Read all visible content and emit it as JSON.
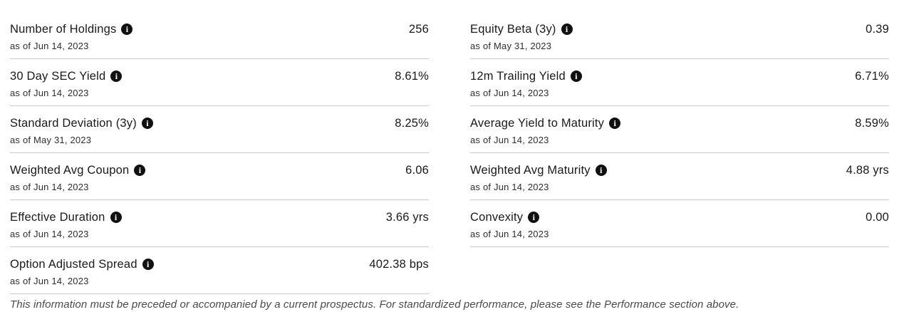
{
  "stats": {
    "left": [
      {
        "label": "Number of Holdings",
        "as_of": "as of Jun 14, 2023",
        "value": "256"
      },
      {
        "label": "30 Day SEC Yield",
        "as_of": "as of Jun 14, 2023",
        "value": "8.61%"
      },
      {
        "label": "Standard Deviation (3y)",
        "as_of": "as of May 31, 2023",
        "value": "8.25%"
      },
      {
        "label": "Weighted Avg Coupon",
        "as_of": "as of Jun 14, 2023",
        "value": "6.06"
      },
      {
        "label": "Effective Duration",
        "as_of": "as of Jun 14, 2023",
        "value": "3.66 yrs"
      },
      {
        "label": "Option Adjusted Spread",
        "as_of": "as of Jun 14, 2023",
        "value": "402.38 bps"
      }
    ],
    "right": [
      {
        "label": "Equity Beta (3y)",
        "as_of": "as of May 31, 2023",
        "value": "0.39"
      },
      {
        "label": "12m Trailing Yield",
        "as_of": "as of Jun 14, 2023",
        "value": "6.71%"
      },
      {
        "label": "Average Yield to Maturity",
        "as_of": "as of Jun 14, 2023",
        "value": "8.59%"
      },
      {
        "label": "Weighted Avg Maturity",
        "as_of": "as of Jun 14, 2023",
        "value": "4.88 yrs"
      },
      {
        "label": "Convexity",
        "as_of": "as of Jun 14, 2023",
        "value": "0.00"
      }
    ]
  },
  "icons": {
    "info_glyph": "i"
  },
  "colors": {
    "label_text": "#1a1a1a",
    "asof_text": "#2e2e2e",
    "divider": "#c9c9c9",
    "disclaimer_text": "#4a4a4a",
    "info_icon_bg": "#111111"
  },
  "disclaimer": "This information must be preceded or accompanied by a current prospectus. For standardized performance, please see the Performance section above."
}
